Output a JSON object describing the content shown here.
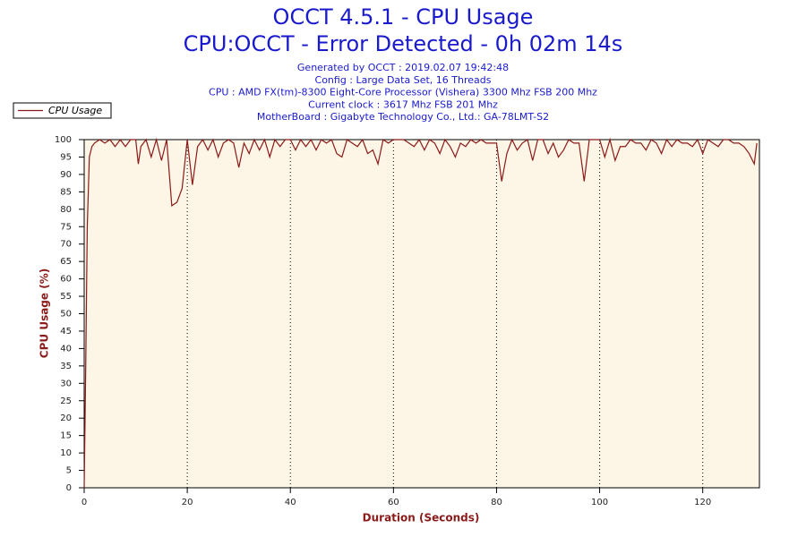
{
  "chart_data": {
    "type": "line",
    "title": "OCCT 4.5.1 - CPU Usage",
    "subtitle": "CPU:OCCT - Error Detected - 0h 02m 14s",
    "info": [
      "Generated by OCCT : 2019.02.07 19:42:48",
      "Config : Large Data Set, 16 Threads",
      "CPU : AMD FX(tm)-8300 Eight-Core Processor (Vishera) 3300 Mhz FSB 200 Mhz",
      "Current clock : 3617 Mhz FSB 201 Mhz",
      "MotherBoard : Gigabyte Technology Co., Ltd.: GA-78LMT-S2"
    ],
    "x_label": "Duration (Seconds)",
    "y_label": "CPU Usage (%)",
    "xlim": [
      0,
      131
    ],
    "ylim": [
      0,
      100
    ],
    "xticks": [
      0,
      20,
      40,
      60,
      80,
      100,
      120
    ],
    "yticks": [
      0,
      5,
      10,
      15,
      20,
      25,
      30,
      35,
      40,
      45,
      50,
      55,
      60,
      65,
      70,
      75,
      80,
      85,
      90,
      95,
      100
    ],
    "grid": true,
    "legend": "top-left",
    "x": [
      0,
      0.3,
      0.6,
      1,
      1.5,
      2,
      3,
      4,
      5,
      6,
      7,
      8,
      9,
      10,
      10.5,
      11,
      12,
      13,
      14,
      15,
      16,
      17,
      18,
      19,
      20,
      21,
      22,
      23,
      24,
      25,
      26,
      27,
      28,
      29,
      30,
      31,
      32,
      33,
      34,
      35,
      36,
      37,
      38,
      39,
      40,
      41,
      42,
      43,
      44,
      45,
      46,
      47,
      48,
      49,
      50,
      51,
      52,
      53,
      54,
      55,
      56,
      57,
      58,
      59,
      60,
      62,
      63,
      64,
      65,
      66,
      67,
      68,
      69,
      70,
      71,
      72,
      73,
      74,
      75,
      76,
      77,
      78,
      79,
      80,
      81,
      82,
      83,
      84,
      85,
      86,
      87,
      88,
      89,
      90,
      91,
      92,
      93,
      94,
      95,
      96,
      97,
      98,
      99,
      100,
      101,
      102,
      103,
      104,
      105,
      106,
      107,
      108,
      109,
      110,
      111,
      112,
      113,
      114,
      115,
      116,
      117,
      118,
      119,
      120,
      121,
      122,
      123,
      124,
      125,
      126,
      127,
      128,
      129,
      130,
      130.5
    ],
    "series": [
      {
        "name": "CPU Usage",
        "color": "#8b1a1a",
        "values": [
          0,
          35,
          75,
          95,
          98,
          99,
          100,
          99,
          100,
          98,
          100,
          98,
          100,
          100,
          93,
          98,
          100,
          95,
          100,
          94,
          100,
          81,
          82,
          86,
          100,
          87,
          98,
          100,
          97,
          100,
          95,
          99,
          100,
          99,
          92,
          99,
          96,
          100,
          97,
          100,
          95,
          100,
          98,
          100,
          100,
          97,
          100,
          98,
          100,
          97,
          100,
          99,
          100,
          96,
          95,
          100,
          99,
          98,
          100,
          96,
          97,
          93,
          100,
          99,
          100,
          100,
          99,
          98,
          100,
          97,
          100,
          99,
          96,
          100,
          98,
          95,
          99,
          98,
          100,
          99,
          100,
          99,
          99,
          99,
          88,
          96,
          100,
          97,
          99,
          100,
          94,
          100,
          100,
          96,
          99,
          95,
          97,
          100,
          99,
          99,
          88,
          100,
          100,
          100,
          95,
          100,
          94,
          98,
          98,
          100,
          99,
          99,
          97,
          100,
          99,
          96,
          100,
          98,
          100,
          99,
          99,
          98,
          100,
          96,
          100,
          99,
          98,
          100,
          100,
          99,
          99,
          98,
          96,
          93,
          99
        ]
      }
    ]
  }
}
